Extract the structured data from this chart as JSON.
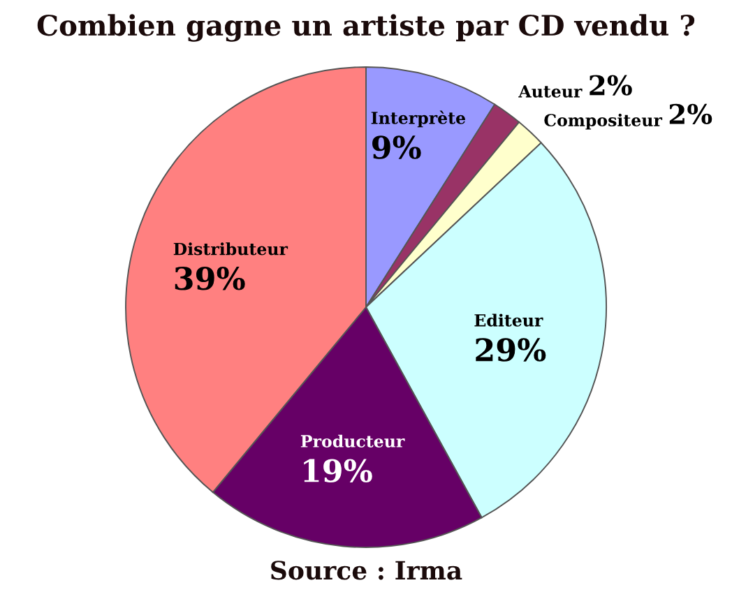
{
  "chart_data": {
    "type": "pie",
    "title": "Combien gagne un artiste par CD vendu ?",
    "categories": [
      "Interprète",
      "Auteur",
      "Compositeur",
      "Editeur",
      "Producteur",
      "Distributeur"
    ],
    "values": [
      9,
      2,
      2,
      29,
      19,
      39
    ],
    "value_labels": [
      "9%",
      "2%",
      "2%",
      "29%",
      "19%",
      "39%"
    ],
    "colors": [
      "#9999ff",
      "#993366",
      "#ffffcc",
      "#ccffff",
      "#660066",
      "#ff8080"
    ],
    "annotations": [
      "Source : Irma"
    ]
  }
}
